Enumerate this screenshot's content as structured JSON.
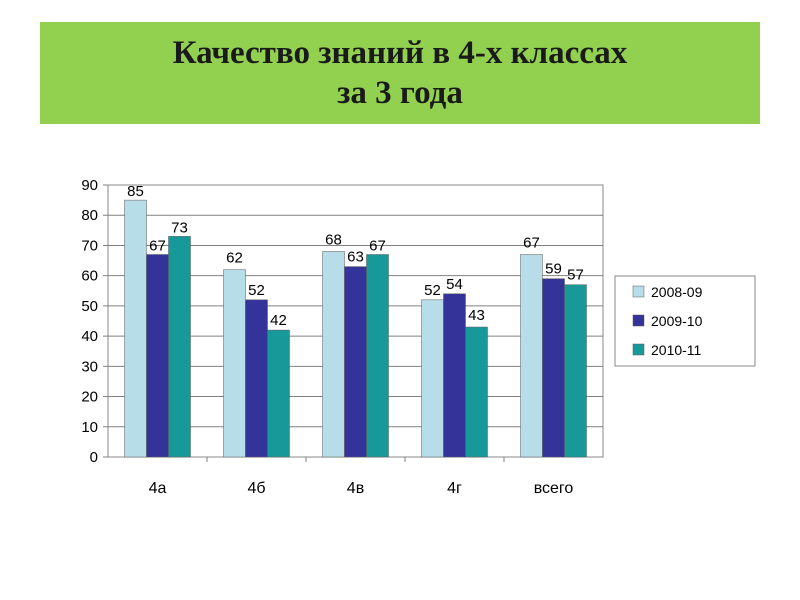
{
  "title": {
    "line1": "Качество знаний в 4-х классах",
    "line2": "за 3 года"
  },
  "chart_data": {
    "type": "bar",
    "categories": [
      "4а",
      "4б",
      "4в",
      "4г",
      "всего"
    ],
    "series": [
      {
        "name": "2008-09",
        "values": [
          85,
          62,
          68,
          52,
          67
        ],
        "color": "#b7dde8"
      },
      {
        "name": "2009-10",
        "values": [
          67,
          52,
          63,
          54,
          59
        ],
        "color": "#333399"
      },
      {
        "name": "2010-11",
        "values": [
          73,
          42,
          67,
          43,
          57
        ],
        "color": "#17999a"
      }
    ],
    "ylim": [
      0,
      90
    ],
    "yticks": [
      0,
      10,
      20,
      30,
      40,
      50,
      60,
      70,
      80,
      90
    ],
    "grid": true,
    "legend": "right"
  }
}
